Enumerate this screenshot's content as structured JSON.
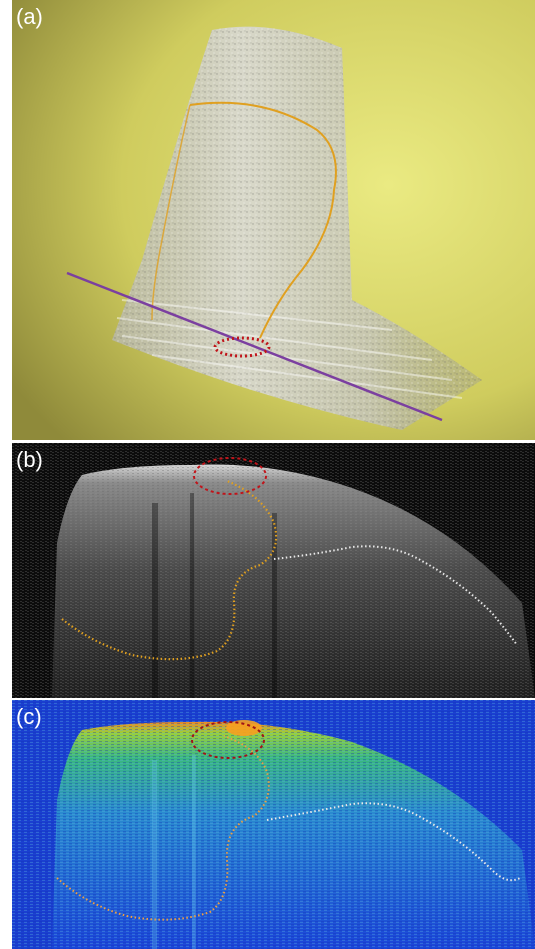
{
  "panels": {
    "a": {
      "label": "(a)"
    },
    "b": {
      "label": "(b)"
    },
    "c": {
      "label": "(c)"
    }
  },
  "colors": {
    "background_a": "#d8d56a",
    "background_b": "#0a0a0a",
    "background_c": "#1a3fd0",
    "boundary_orange": "#e0a020",
    "boundary_white": "#e8e8e8",
    "highlight_red": "#c0141a",
    "cut_line_purple": "#7b3fa0"
  },
  "icons": [
    "oct-volume-render",
    "oct-bscan-grayscale",
    "oct-bscan-colormap"
  ]
}
